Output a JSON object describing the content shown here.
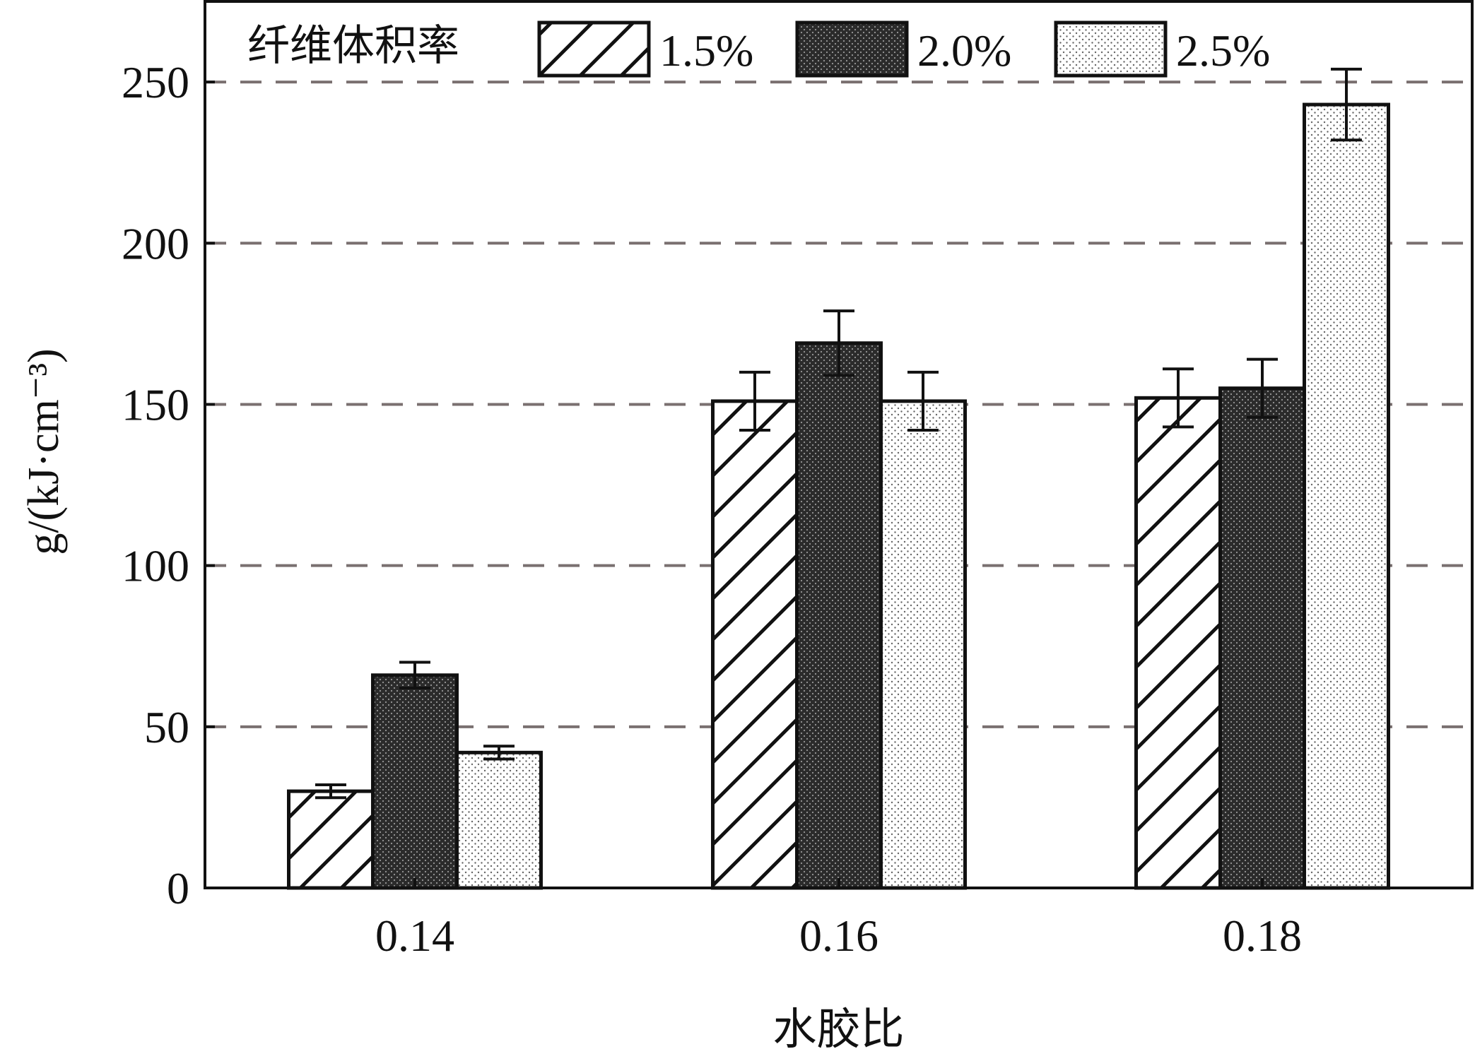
{
  "chart_data": {
    "type": "bar",
    "categories": [
      "0.14",
      "0.16",
      "0.18"
    ],
    "series": [
      {
        "name": "1.5%",
        "values": [
          30,
          151,
          152
        ],
        "errors": [
          2,
          9,
          9
        ],
        "pattern": "hatch"
      },
      {
        "name": "2.0%",
        "values": [
          66,
          169,
          155
        ],
        "errors": [
          4,
          10,
          9
        ],
        "pattern": "dark-dots"
      },
      {
        "name": "2.5%",
        "values": [
          42,
          151,
          243
        ],
        "errors": [
          2,
          9,
          11
        ],
        "pattern": "light-dots"
      }
    ],
    "legend_title": "纤维体积率",
    "xlabel": "水胶比",
    "ylabel": "g/(kJ·cm⁻³)",
    "ylim": [
      0,
      275
    ],
    "yticks": [
      0,
      50,
      100,
      150,
      200,
      250
    ],
    "grid": "dashed horizontal",
    "legend_position": "top"
  }
}
